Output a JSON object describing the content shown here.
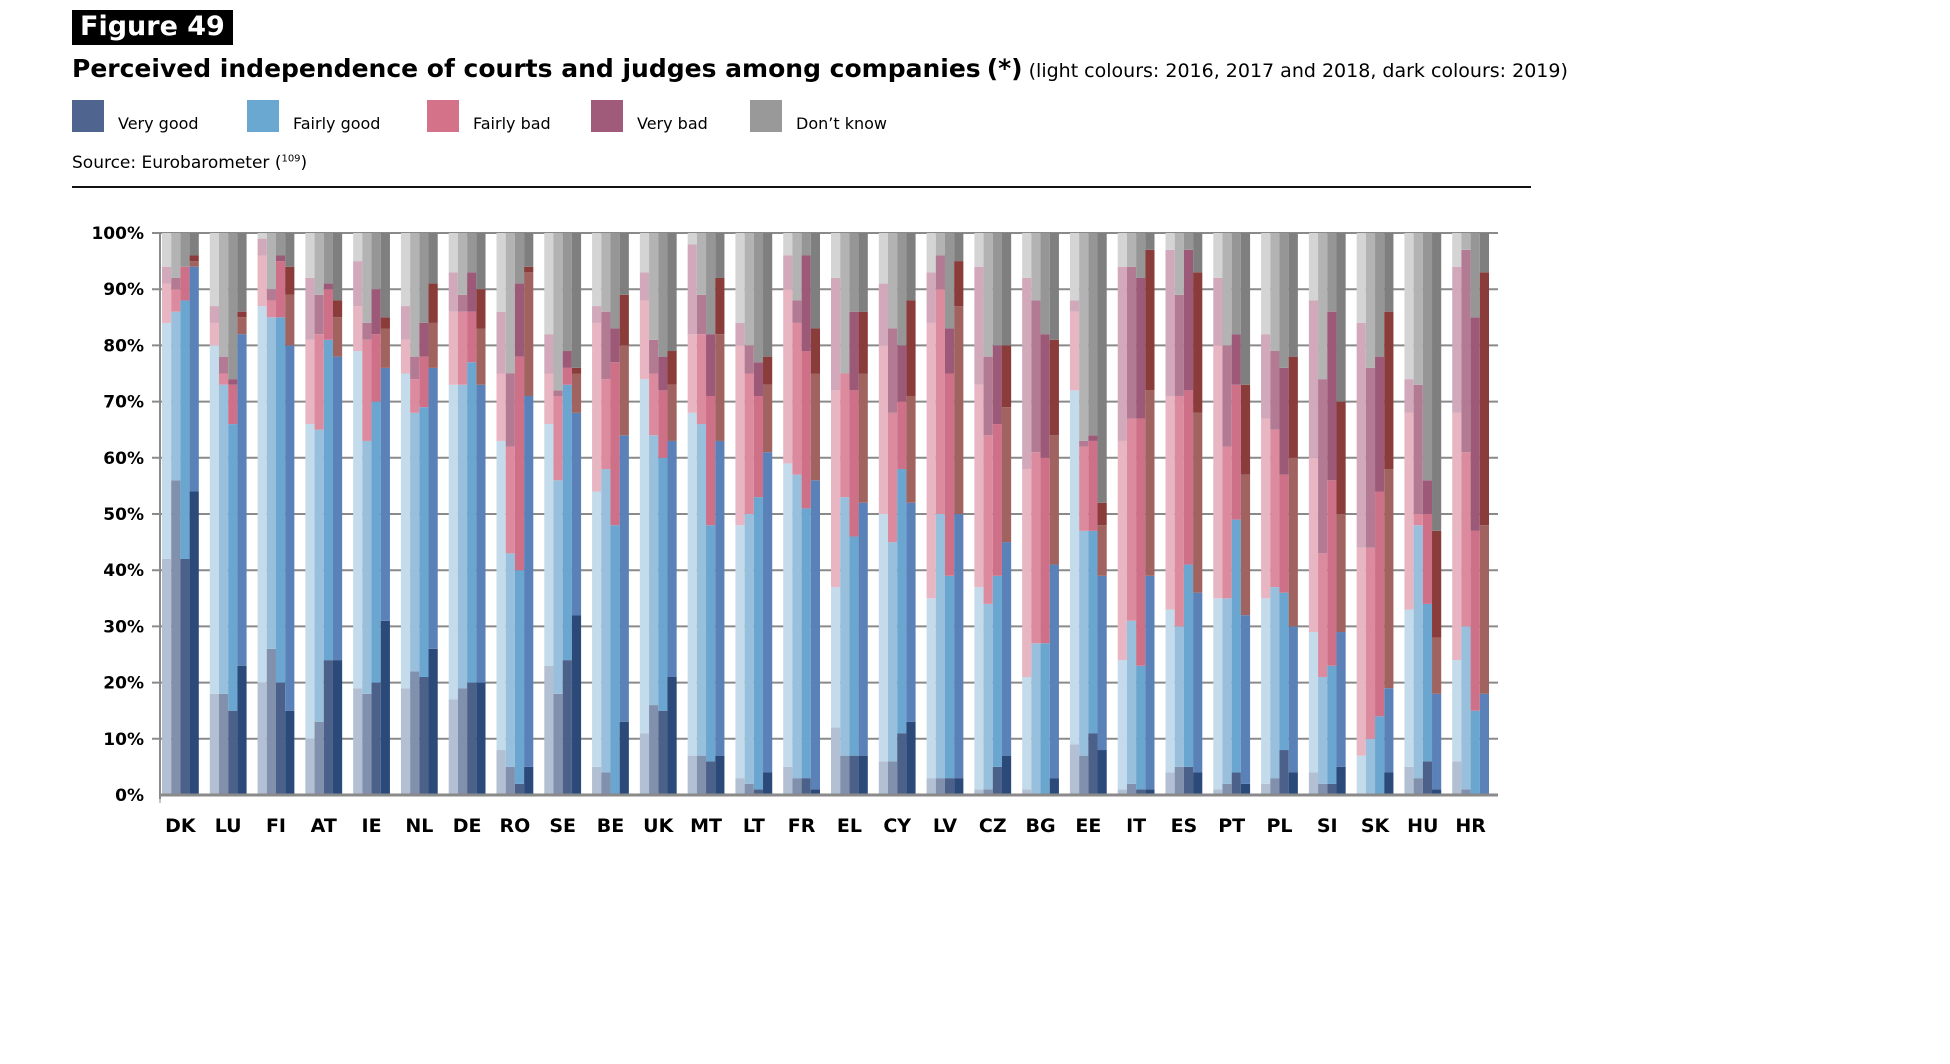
{
  "figure_label": "Figure 49",
  "title": "Perceived independence of courts and judges among companies",
  "title_asterisk": "(*)",
  "subtitle": "(light colours: 2016, 2017 and 2018, dark colours: 2019)",
  "source_text": "Source: Eurobarometer (",
  "source_ref": "109",
  "source_close": ")",
  "colors": {
    "Very good": [
      "#b3bfd3",
      "#8090ad",
      "#4c6189",
      "#2b4a7a"
    ],
    "Fairly good": [
      "#c4dbeb",
      "#98bfdc",
      "#6aa6cf",
      "#5a82b9"
    ],
    "Fairly bad": [
      "#e8b5c2",
      "#dc8b9f",
      "#cf7089",
      "#a06360"
    ],
    "Very bad": [
      "#d1a9bb",
      "#b27b93",
      "#9d5a78",
      "#8a3c3a"
    ],
    "Don't know": [
      "#d4d4d4",
      "#b3b3b3",
      "#969696",
      "#7f7f7f"
    ]
  },
  "legend": [
    {
      "label": "Very good",
      "color": "#4f658f"
    },
    {
      "label": "Fairly good",
      "color": "#6ba8d1"
    },
    {
      "label": "Fairly bad",
      "color": "#d4728a"
    },
    {
      "label": "Very bad",
      "color": "#a05a7a"
    },
    {
      "label": "Don’t know",
      "color": "#999999"
    }
  ],
  "chart_data": {
    "type": "bar",
    "stacked": true,
    "title": "Perceived independence of courts and judges among companies",
    "xlabel": "",
    "ylabel": "",
    "ylim": [
      0,
      100
    ],
    "y_ticks": [
      "0%",
      "10%",
      "20%",
      "30%",
      "40%",
      "50%",
      "60%",
      "70%",
      "80%",
      "90%",
      "100%"
    ],
    "grid": true,
    "legend_position": "top",
    "years": [
      "2016",
      "2017",
      "2018",
      "2019"
    ],
    "stack_order": [
      "Very good",
      "Fairly good",
      "Fairly bad",
      "Very bad",
      "Don't know"
    ],
    "categories": [
      "DK",
      "LU",
      "FI",
      "AT",
      "IE",
      "NL",
      "DE",
      "RO",
      "SE",
      "BE",
      "UK",
      "MT",
      "LT",
      "FR",
      "EL",
      "CY",
      "LV",
      "CZ",
      "BG",
      "EE",
      "IT",
      "ES",
      "PT",
      "PL",
      "SI",
      "SK",
      "HU",
      "HR"
    ],
    "values": {
      "DK": {
        "2016": [
          42,
          42,
          7,
          3,
          6
        ],
        "2017": [
          56,
          30,
          4,
          2,
          8
        ],
        "2018": [
          42,
          46,
          6,
          0,
          6
        ],
        "2019": [
          54,
          40,
          1,
          1,
          4
        ]
      },
      "LU": {
        "2016": [
          18,
          62,
          4,
          3,
          13
        ],
        "2017": [
          18,
          55,
          2,
          3,
          22
        ],
        "2018": [
          15,
          51,
          7,
          1,
          26
        ],
        "2019": [
          23,
          59,
          3,
          1,
          14
        ]
      },
      "FI": {
        "2016": [
          20,
          67,
          9,
          3,
          1
        ],
        "2017": [
          26,
          59,
          3,
          2,
          10
        ],
        "2018": [
          20,
          65,
          10,
          1,
          4
        ],
        "2019": [
          15,
          65,
          9,
          5,
          6
        ]
      },
      "AT": {
        "2016": [
          10,
          56,
          15,
          11,
          8
        ],
        "2017": [
          13,
          52,
          17,
          7,
          11
        ],
        "2018": [
          24,
          57,
          9,
          1,
          9
        ],
        "2019": [
          24,
          54,
          7,
          3,
          12
        ]
      },
      "IE": {
        "2016": [
          19,
          60,
          8,
          8,
          5
        ],
        "2017": [
          18,
          45,
          18,
          3,
          16
        ],
        "2018": [
          20,
          50,
          12,
          8,
          10
        ],
        "2019": [
          31,
          45,
          7,
          2,
          15
        ]
      },
      "NL": {
        "2016": [
          19,
          56,
          6,
          6,
          13
        ],
        "2017": [
          22,
          46,
          6,
          4,
          22
        ],
        "2018": [
          21,
          48,
          9,
          6,
          16
        ],
        "2019": [
          26,
          50,
          8,
          7,
          9
        ]
      },
      "DE": {
        "2016": [
          17,
          56,
          13,
          7,
          7
        ],
        "2017": [
          19,
          54,
          13,
          3,
          11
        ],
        "2018": [
          20,
          57,
          9,
          7,
          7
        ],
        "2019": [
          20,
          53,
          10,
          7,
          10
        ]
      },
      "RO": {
        "2016": [
          8,
          55,
          12,
          11,
          14
        ],
        "2017": [
          5,
          38,
          19,
          13,
          25
        ],
        "2018": [
          2,
          38,
          38,
          13,
          9
        ],
        "2019": [
          5,
          66,
          22,
          1,
          6
        ]
      },
      "SE": {
        "2016": [
          23,
          43,
          9,
          7,
          18
        ],
        "2017": [
          18,
          38,
          15,
          1,
          28
        ],
        "2018": [
          24,
          49,
          3,
          3,
          21
        ],
        "2019": [
          32,
          36,
          7,
          1,
          24
        ]
      },
      "BE": {
        "2016": [
          5,
          49,
          30,
          3,
          13
        ],
        "2017": [
          4,
          54,
          16,
          12,
          14
        ],
        "2018": [
          0,
          48,
          29,
          6,
          17
        ],
        "2019": [
          13,
          51,
          16,
          9,
          11
        ]
      },
      "UK": {
        "2016": [
          11,
          63,
          14,
          5,
          7
        ],
        "2017": [
          16,
          48,
          11,
          6,
          19
        ],
        "2018": [
          15,
          45,
          12,
          6,
          22
        ],
        "2019": [
          21,
          42,
          10,
          6,
          21
        ]
      },
      "MT": {
        "2016": [
          7,
          61,
          14,
          16,
          2
        ],
        "2017": [
          7,
          59,
          16,
          7,
          11
        ],
        "2018": [
          6,
          42,
          23,
          11,
          18
        ],
        "2019": [
          7,
          56,
          19,
          10,
          8
        ]
      },
      "LT": {
        "2016": [
          3,
          45,
          32,
          4,
          16
        ],
        "2017": [
          2,
          48,
          25,
          5,
          20
        ],
        "2018": [
          1,
          52,
          18,
          6,
          23
        ],
        "2019": [
          4,
          57,
          12,
          5,
          22
        ]
      },
      "FR": {
        "2016": [
          5,
          54,
          31,
          6,
          4
        ],
        "2017": [
          3,
          54,
          27,
          4,
          12
        ],
        "2018": [
          3,
          48,
          28,
          17,
          4
        ],
        "2019": [
          1,
          55,
          19,
          8,
          17
        ]
      },
      "EL": {
        "2016": [
          12,
          25,
          35,
          20,
          8
        ],
        "2017": [
          7,
          46,
          22,
          0,
          25
        ],
        "2018": [
          7,
          39,
          26,
          14,
          14
        ],
        "2019": [
          7,
          45,
          23,
          11,
          14
        ]
      },
      "CY": {
        "2016": [
          6,
          44,
          30,
          11,
          9
        ],
        "2017": [
          6,
          39,
          23,
          15,
          17
        ],
        "2018": [
          11,
          47,
          12,
          10,
          20
        ],
        "2019": [
          13,
          39,
          19,
          17,
          12
        ]
      },
      "LV": {
        "2016": [
          3,
          32,
          49,
          9,
          7
        ],
        "2017": [
          3,
          47,
          40,
          6,
          4
        ],
        "2018": [
          3,
          36,
          36,
          8,
          17
        ],
        "2019": [
          3,
          47,
          37,
          8,
          5
        ]
      },
      "CZ": {
        "2016": [
          1,
          36,
          36,
          21,
          6
        ],
        "2017": [
          1,
          33,
          30,
          14,
          22
        ],
        "2018": [
          5,
          34,
          27,
          14,
          20
        ],
        "2019": [
          7,
          38,
          24,
          11,
          20
        ]
      },
      "BG": {
        "2016": [
          1,
          20,
          37,
          34,
          8
        ],
        "2017": [
          0,
          27,
          34,
          27,
          12
        ],
        "2018": [
          0,
          27,
          33,
          22,
          18
        ],
        "2019": [
          3,
          38,
          23,
          17,
          19
        ]
      },
      "EE": {
        "2016": [
          9,
          63,
          14,
          2,
          12
        ],
        "2017": [
          7,
          40,
          15,
          1,
          37
        ],
        "2018": [
          11,
          36,
          16,
          1,
          36
        ],
        "2019": [
          8,
          31,
          9,
          4,
          48
        ]
      },
      "IT": {
        "2016": [
          1,
          23,
          39,
          31,
          6
        ],
        "2017": [
          2,
          29,
          36,
          27,
          6
        ],
        "2018": [
          1,
          22,
          44,
          25,
          8
        ],
        "2019": [
          1,
          38,
          33,
          25,
          3
        ]
      },
      "ES": {
        "2016": [
          4,
          29,
          38,
          26,
          3
        ],
        "2017": [
          5,
          25,
          41,
          18,
          11
        ],
        "2018": [
          5,
          36,
          31,
          25,
          3
        ],
        "2019": [
          4,
          32,
          32,
          25,
          7
        ]
      },
      "PT": {
        "2016": [
          1,
          34,
          45,
          12,
          8
        ],
        "2017": [
          2,
          33,
          27,
          18,
          20
        ],
        "2018": [
          4,
          45,
          24,
          9,
          18
        ],
        "2019": [
          2,
          30,
          25,
          16,
          27
        ]
      },
      "PL": {
        "2016": [
          2,
          33,
          32,
          15,
          18
        ],
        "2017": [
          3,
          34,
          28,
          14,
          21
        ],
        "2018": [
          8,
          28,
          21,
          19,
          24
        ],
        "2019": [
          4,
          26,
          30,
          18,
          22
        ]
      },
      "SI": {
        "2016": [
          4,
          25,
          31,
          28,
          12
        ],
        "2017": [
          2,
          19,
          22,
          31,
          26
        ],
        "2018": [
          2,
          21,
          33,
          30,
          14
        ],
        "2019": [
          5,
          24,
          21,
          20,
          30
        ]
      },
      "SK": {
        "2016": [
          0,
          7,
          37,
          40,
          16
        ],
        "2017": [
          0,
          10,
          34,
          32,
          24
        ],
        "2018": [
          0,
          14,
          40,
          24,
          22
        ],
        "2019": [
          4,
          15,
          39,
          28,
          14
        ]
      },
      "HU": {
        "2016": [
          5,
          28,
          35,
          6,
          26
        ],
        "2017": [
          3,
          45,
          2,
          23,
          27
        ],
        "2018": [
          6,
          28,
          16,
          6,
          44
        ],
        "2019": [
          1,
          17,
          10,
          19,
          53
        ]
      },
      "HR": {
        "2016": [
          6,
          18,
          44,
          26,
          6
        ],
        "2017": [
          1,
          29,
          31,
          36,
          3
        ],
        "2018": [
          0,
          15,
          32,
          38,
          15
        ],
        "2019": [
          0,
          18,
          30,
          45,
          7
        ]
      }
    }
  }
}
